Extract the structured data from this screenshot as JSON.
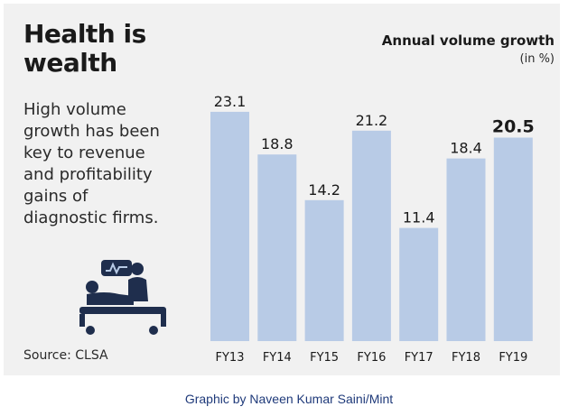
{
  "header": {
    "headline_line1": "Health is",
    "headline_line2": "wealth",
    "description": [
      "High volume",
      "growth has been",
      "key to revenue",
      "and profitability",
      "gains of",
      "diagnostic firms."
    ],
    "source": "Source: CLSA"
  },
  "icon": {
    "name": "patient-bed-icon"
  },
  "credit": "Graphic by Naveen Kumar Saini/Mint",
  "colors": {
    "bar": "#b8cbe6",
    "card": "#f1f1f1",
    "text": "#1a1a1a",
    "credit": "#1f3a7a"
  },
  "chart_data": {
    "type": "bar",
    "title": "Annual volume growth",
    "subtitle": "(in %)",
    "categories": [
      "FY13",
      "FY14",
      "FY15",
      "FY16",
      "FY17",
      "FY18",
      "FY19"
    ],
    "values": [
      23.1,
      18.8,
      14.2,
      21.2,
      11.4,
      18.4,
      20.5
    ],
    "value_labels": [
      "23.1",
      "18.8",
      "14.2",
      "21.2",
      "11.4",
      "18.4",
      "20.5"
    ],
    "highlight_index": 6,
    "ylim": [
      0,
      25
    ],
    "grid": false,
    "legend": "none"
  }
}
